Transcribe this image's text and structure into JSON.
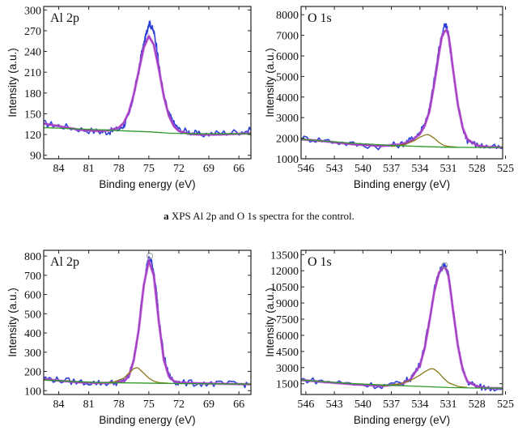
{
  "caption": {
    "prefix": "a",
    "text": "XPS Al 2p and O 1s spectra for the control."
  },
  "colors": {
    "raw": "#2b3fd6",
    "fit": "#a63fc4",
    "fit_border": "#c06ad6",
    "peak": "#8a7a1a",
    "baseline": "#2d9a2a",
    "open_circle": "#999999"
  },
  "chart_data": [
    {
      "type": "line",
      "title": "Al 2p",
      "xlabel": "Binding energy (eV)",
      "ylabel": "Intensity (a.u.)",
      "xlim": [
        85.5,
        64.8
      ],
      "ylim": [
        85,
        305
      ],
      "xticks": [
        84,
        81,
        78,
        75,
        72,
        69,
        66
      ],
      "yticks": [
        90,
        120,
        150,
        180,
        210,
        240,
        270,
        300
      ],
      "series": [
        {
          "role": "raw",
          "x": [
            85.5,
            84,
            82,
            80,
            79,
            78,
            77.5,
            77,
            76.5,
            76,
            75.8,
            75.5,
            75.2,
            75,
            74.8,
            74.5,
            74.2,
            74,
            73.5,
            73,
            72.5,
            72,
            71,
            70,
            68,
            66,
            64.8
          ],
          "y": [
            136,
            133,
            128,
            124,
            124,
            128,
            133,
            147,
            178,
            212,
            232,
            250,
            268,
            282,
            278,
            268,
            246,
            220,
            175,
            150,
            136,
            127,
            124,
            120,
            122,
            124,
            126
          ]
        },
        {
          "role": "fit",
          "x": [
            85.5,
            84,
            82,
            80,
            79,
            78,
            77.5,
            77,
            76.5,
            76,
            75.5,
            75,
            74.5,
            74,
            73.5,
            73,
            72.5,
            72,
            71,
            70,
            68,
            66,
            64.8
          ],
          "y": [
            136,
            132,
            127,
            125,
            126,
            130,
            137,
            152,
            178,
            212,
            246,
            262,
            250,
            215,
            175,
            147,
            132,
            125,
            121,
            120,
            120,
            121,
            122
          ]
        },
        {
          "role": "baseline",
          "x": [
            85.5,
            80,
            77,
            75,
            73,
            70,
            66,
            64.8
          ],
          "y": [
            130,
            127,
            125,
            124,
            122,
            121,
            121,
            121
          ]
        }
      ]
    },
    {
      "type": "line",
      "title": "O 1s",
      "xlabel": "Binding energy (eV)",
      "ylabel": "Intensity (a.u.)",
      "xlim": [
        546.5,
        525.3
      ],
      "ylim": [
        1000,
        8400
      ],
      "xticks": [
        546,
        543,
        540,
        537,
        534,
        531,
        528,
        525
      ],
      "yticks": [
        1000,
        2000,
        3000,
        4000,
        5000,
        6000,
        7000,
        8000
      ],
      "series": [
        {
          "role": "raw",
          "x": [
            546.5,
            544,
            541,
            538,
            536,
            535,
            534,
            533.5,
            533,
            532.5,
            532,
            531.7,
            531.4,
            531.2,
            531,
            530.8,
            530.5,
            530,
            529.5,
            529,
            528,
            527,
            525.3
          ],
          "y": [
            2000,
            1900,
            1700,
            1600,
            1700,
            1900,
            2300,
            2700,
            3400,
            4800,
            6300,
            7000,
            7500,
            7400,
            7100,
            6300,
            5300,
            3600,
            2500,
            1900,
            1650,
            1600,
            1500
          ]
        },
        {
          "role": "fit",
          "x": [
            546.5,
            544,
            541,
            538,
            536,
            535,
            534,
            533.5,
            533,
            532.5,
            532,
            531.7,
            531.4,
            531.2,
            531,
            530.8,
            530.5,
            530,
            529.5,
            529,
            528,
            527,
            525.3
          ],
          "y": [
            1950,
            1850,
            1700,
            1620,
            1700,
            1850,
            2200,
            2600,
            3300,
            4600,
            6100,
            6900,
            7200,
            7250,
            7000,
            6400,
            5300,
            3600,
            2500,
            1950,
            1650,
            1580,
            1550
          ]
        },
        {
          "role": "peak",
          "x": [
            537,
            535.5,
            534.5,
            534,
            533.5,
            533.2,
            533,
            532.5,
            532,
            531.5,
            531,
            530
          ],
          "y": [
            1600,
            1700,
            1900,
            2050,
            2150,
            2180,
            2150,
            2000,
            1800,
            1650,
            1600,
            1560
          ]
        },
        {
          "role": "baseline",
          "x": [
            546.5,
            541,
            537,
            534,
            531,
            528,
            525.3
          ],
          "y": [
            1950,
            1750,
            1650,
            1600,
            1560,
            1550,
            1550
          ]
        }
      ]
    },
    {
      "type": "line",
      "title": "Al 2p",
      "xlabel": "Binding energy (eV)",
      "ylabel": "Intensity (a.u.)",
      "xlim": [
        85.5,
        64.8
      ],
      "ylim": [
        80,
        830
      ],
      "xticks": [
        84,
        81,
        78,
        75,
        72,
        69,
        66
      ],
      "yticks": [
        100,
        200,
        300,
        400,
        500,
        600,
        700,
        800
      ],
      "series": [
        {
          "role": "raw",
          "x": [
            85.5,
            84,
            82,
            80,
            78.5,
            77.5,
            77,
            76.5,
            76,
            75.8,
            75.5,
            75.2,
            75,
            74.8,
            74.5,
            74.2,
            74,
            73.5,
            73,
            72.5,
            72,
            70,
            68,
            66,
            64.8
          ],
          "y": [
            165,
            155,
            145,
            140,
            140,
            150,
            175,
            260,
            420,
            530,
            650,
            750,
            785,
            780,
            720,
            600,
            470,
            280,
            180,
            150,
            140,
            138,
            135,
            133,
            132
          ]
        },
        {
          "role": "fit",
          "x": [
            85.5,
            84,
            82,
            80,
            78.5,
            77.5,
            77,
            76.5,
            76,
            75.5,
            75,
            74.5,
            74,
            73.5,
            73,
            72.5,
            72,
            70,
            68,
            66,
            64.8
          ],
          "y": [
            160,
            152,
            143,
            140,
            142,
            150,
            175,
            260,
            420,
            650,
            775,
            700,
            460,
            260,
            175,
            150,
            142,
            138,
            136,
            134,
            133
          ]
        },
        {
          "role": "peak",
          "x": [
            80,
            78.5,
            77.5,
            77,
            76.5,
            76.2,
            76,
            75.5,
            75,
            74.5,
            74,
            73
          ],
          "y": [
            140,
            145,
            165,
            190,
            215,
            220,
            215,
            190,
            165,
            150,
            142,
            138
          ]
        },
        {
          "role": "baseline",
          "x": [
            85.5,
            80,
            76,
            74,
            72,
            68,
            64.8
          ],
          "y": [
            155,
            142,
            140,
            138,
            137,
            135,
            134
          ]
        },
        {
          "role": "open_circle",
          "x": [
            74.9
          ],
          "y": [
            800
          ]
        }
      ]
    },
    {
      "type": "line",
      "title": "O 1s",
      "xlabel": "Binding energy (eV)",
      "ylabel": "Intensity (a.u.)",
      "xlim": [
        546.5,
        525.3
      ],
      "ylim": [
        500,
        13900
      ],
      "xticks": [
        546,
        543,
        540,
        537,
        534,
        531,
        528,
        525
      ],
      "yticks": [
        1500,
        3000,
        4500,
        6000,
        7500,
        9000,
        10500,
        12000,
        13500
      ],
      "series": [
        {
          "role": "raw",
          "x": [
            546.5,
            544,
            541,
            538,
            536,
            535,
            534,
            533.5,
            533,
            532.5,
            532,
            531.7,
            531.4,
            531.2,
            531,
            530.8,
            530.5,
            530,
            529.5,
            529,
            528,
            527,
            525.3
          ],
          "y": [
            1900,
            1700,
            1500,
            1300,
            1500,
            2000,
            3300,
            5000,
            7500,
            10200,
            11800,
            12300,
            12400,
            12200,
            11600,
            10400,
            8300,
            5000,
            2800,
            1700,
            1250,
            1100,
            1100
          ]
        },
        {
          "role": "fit",
          "x": [
            546.5,
            544,
            541,
            538,
            536,
            535,
            534,
            533.5,
            533,
            532.5,
            532,
            531.7,
            531.4,
            531.2,
            531,
            530.8,
            530.5,
            530,
            529.5,
            529,
            528,
            527,
            525.3
          ],
          "y": [
            1850,
            1650,
            1450,
            1300,
            1450,
            1900,
            3200,
            4800,
            7300,
            10000,
            11800,
            12200,
            12300,
            12100,
            11500,
            10300,
            8200,
            5000,
            2800,
            1700,
            1250,
            1100,
            1080
          ]
        },
        {
          "role": "peak",
          "x": [
            538,
            536,
            535,
            534,
            533.5,
            533,
            532.7,
            532.5,
            532,
            531.5,
            531,
            530,
            529
          ],
          "y": [
            1300,
            1500,
            1800,
            2300,
            2600,
            2850,
            2900,
            2850,
            2500,
            2000,
            1600,
            1250,
            1150
          ]
        },
        {
          "role": "baseline",
          "x": [
            546.5,
            541,
            537,
            534,
            531,
            528,
            525.3
          ],
          "y": [
            1850,
            1500,
            1350,
            1250,
            1150,
            1100,
            1080
          ]
        },
        {
          "role": "open_circle",
          "x": [
            531.4
          ],
          "y": [
            12500
          ]
        }
      ]
    }
  ]
}
